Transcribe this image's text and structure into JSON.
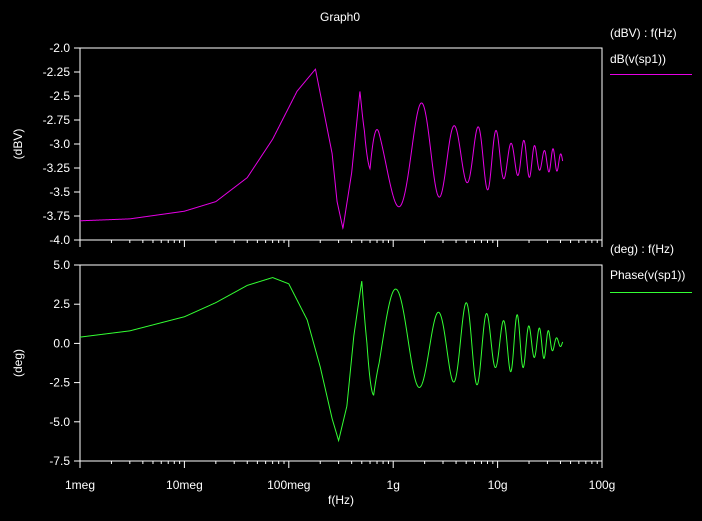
{
  "graph": {
    "title": "Graph0",
    "xlabel": "f(Hz)",
    "x_ticks": [
      "1meg",
      "10meg",
      "100meg",
      "1g",
      "10g",
      "100g"
    ]
  },
  "chart_data": [
    {
      "type": "line",
      "title": "Graph0",
      "ylabel": "(dBV)",
      "xlabel": "f(Hz)",
      "x_scale": "log",
      "xlim": [
        1000000,
        100000000000
      ],
      "ylim": [
        -4.0,
        -2.0
      ],
      "y_ticks": [
        "-2.0",
        "-2.25",
        "-2.5",
        "-2.75",
        "-3.0",
        "-3.25",
        "-3.5",
        "-3.75",
        "-4.0"
      ],
      "legend_header": "(dBV) : f(Hz)",
      "legend_placement": "right",
      "series": [
        {
          "name": "dB(v(sp1))",
          "color": "#e600e6",
          "x": [
            1000000,
            3000000,
            10000000,
            20000000,
            40000000,
            70000000,
            120000000,
            180000000,
            260000000,
            290000000,
            330000000,
            400000000,
            480000000,
            530000000,
            600000000,
            800000000,
            1000000000,
            2000000000,
            5000000000,
            10000000000,
            20000000000,
            42000000000
          ],
          "values": [
            -3.8,
            -3.78,
            -3.7,
            -3.6,
            -3.35,
            -2.95,
            -2.45,
            -2.22,
            -3.1,
            -3.6,
            -3.88,
            -3.3,
            -2.45,
            -2.9,
            -3.8,
            -2.5,
            -3.7,
            -3.5,
            -3.0,
            -3.25,
            -3.15,
            -3.25
          ],
          "envelope": {
            "x": [
              500000000,
              1000000000,
              2000000000,
              5000000000,
              10000000000,
              20000000000,
              42000000000
            ],
            "max": [
              -2.45,
              -2.5,
              -2.58,
              -2.7,
              -2.85,
              -2.97,
              -3.08
            ],
            "min": [
              -3.8,
              -3.72,
              -3.65,
              -3.55,
              -3.45,
              -3.35,
              -3.28
            ]
          }
        }
      ]
    },
    {
      "type": "line",
      "ylabel": "(deg)",
      "xlabel": "f(Hz)",
      "x_scale": "log",
      "xlim": [
        1000000,
        100000000000
      ],
      "ylim": [
        -7.5,
        5.0
      ],
      "y_ticks": [
        "5.0",
        "2.5",
        "0.0",
        "-2.5",
        "-5.0",
        "-7.5"
      ],
      "legend_header": "(deg) : f(Hz)",
      "legend_placement": "right",
      "series": [
        {
          "name": "Phase(v(sp1))",
          "color": "#33ff33",
          "x": [
            1000000,
            3000000,
            10000000,
            20000000,
            40000000,
            70000000,
            100000000,
            150000000,
            200000000,
            260000000,
            300000000,
            360000000,
            420000000,
            500000000,
            560000000,
            650000000,
            800000000,
            1000000000,
            2000000000,
            5000000000,
            10000000000,
            20000000000,
            42000000000
          ],
          "values": [
            0.4,
            0.8,
            1.7,
            2.6,
            3.7,
            4.2,
            3.8,
            1.5,
            -1.5,
            -4.8,
            -6.2,
            -4.0,
            0.5,
            4.0,
            2.0,
            -3.5,
            3.8,
            -3.5,
            -3.0,
            -2.3,
            -1.5,
            -1.0,
            0.1
          ],
          "envelope": {
            "x": [
              500000000,
              1000000000,
              2000000000,
              5000000000,
              10000000000,
              20000000000,
              42000000000
            ],
            "max": [
              4.0,
              3.8,
              3.4,
              2.7,
              2.2,
              1.6,
              0.3
            ],
            "min": [
              -5.0,
              -4.3,
              -3.7,
              -2.9,
              -2.3,
              -1.6,
              -0.2
            ]
          }
        }
      ]
    }
  ]
}
